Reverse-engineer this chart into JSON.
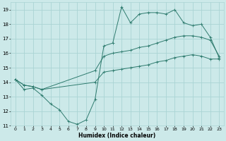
{
  "xlabel": "Humidex (Indice chaleur)",
  "bg_color": "#cce9e9",
  "grid_color": "#aad4d4",
  "line_color": "#2e7b6e",
  "xlim": [
    -0.5,
    23.5
  ],
  "ylim": [
    11,
    19.5
  ],
  "xticks": [
    0,
    1,
    2,
    3,
    4,
    5,
    6,
    7,
    8,
    9,
    10,
    11,
    12,
    13,
    14,
    15,
    16,
    17,
    18,
    19,
    20,
    21,
    22,
    23
  ],
  "yticks": [
    11,
    12,
    13,
    14,
    15,
    16,
    17,
    18,
    19
  ],
  "line1_x": [
    0,
    1,
    2,
    3,
    4,
    5,
    6,
    7,
    8,
    9,
    10,
    11,
    12,
    13,
    14,
    15,
    16,
    17,
    18,
    19,
    20,
    21,
    22,
    23
  ],
  "line1_y": [
    14.2,
    13.5,
    13.6,
    13.1,
    12.5,
    12.1,
    11.3,
    11.1,
    11.4,
    12.8,
    16.5,
    16.7,
    19.2,
    18.1,
    18.7,
    18.8,
    18.8,
    18.7,
    19.0,
    18.1,
    17.9,
    18.0,
    17.1,
    15.7
  ],
  "line2_x": [
    0,
    1,
    2,
    3,
    9,
    10,
    11,
    12,
    13,
    14,
    15,
    16,
    17,
    18,
    19,
    20,
    21,
    22,
    23
  ],
  "line2_y": [
    14.2,
    13.8,
    13.7,
    13.5,
    14.8,
    15.8,
    16.0,
    16.1,
    16.2,
    16.4,
    16.5,
    16.7,
    16.9,
    17.1,
    17.2,
    17.2,
    17.1,
    16.9,
    15.8
  ],
  "line3_x": [
    0,
    1,
    2,
    3,
    9,
    10,
    11,
    12,
    13,
    14,
    15,
    16,
    17,
    18,
    19,
    20,
    21,
    22,
    23
  ],
  "line3_y": [
    14.2,
    13.8,
    13.7,
    13.5,
    14.0,
    14.7,
    14.8,
    14.9,
    15.0,
    15.1,
    15.2,
    15.4,
    15.5,
    15.7,
    15.8,
    15.9,
    15.8,
    15.6,
    15.6
  ]
}
